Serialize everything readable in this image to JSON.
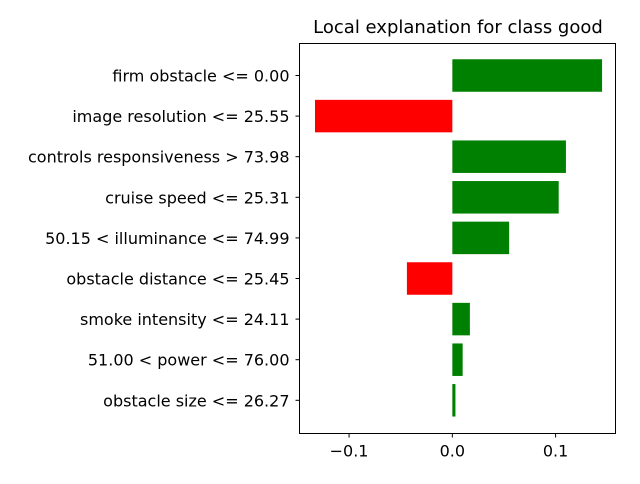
{
  "chart_data": {
    "type": "bar",
    "orientation": "horizontal",
    "title": "Local explanation for class good",
    "xlabel": "",
    "ylabel": "",
    "xlim": [
      -0.148,
      0.158
    ],
    "xticks": [
      -0.1,
      0.0,
      0.1
    ],
    "xtick_labels": [
      "−0.1",
      "0.0",
      "0.1"
    ],
    "grid": false,
    "legend": "none",
    "categories": [
      "firm obstacle <= 0.00",
      "image resolution <= 25.55",
      "controls responsiveness > 73.98",
      "cruise speed <= 25.31",
      "50.15 < illuminance <= 74.99",
      "obstacle distance <= 25.45",
      "smoke intensity <= 24.11",
      "51.00 < power <= 76.00",
      "obstacle size <= 26.27"
    ],
    "values": [
      0.145,
      -0.133,
      0.11,
      0.103,
      0.055,
      -0.044,
      0.017,
      0.01,
      0.003
    ],
    "colors": {
      "positive": "#008000",
      "negative": "#ff0000"
    }
  }
}
